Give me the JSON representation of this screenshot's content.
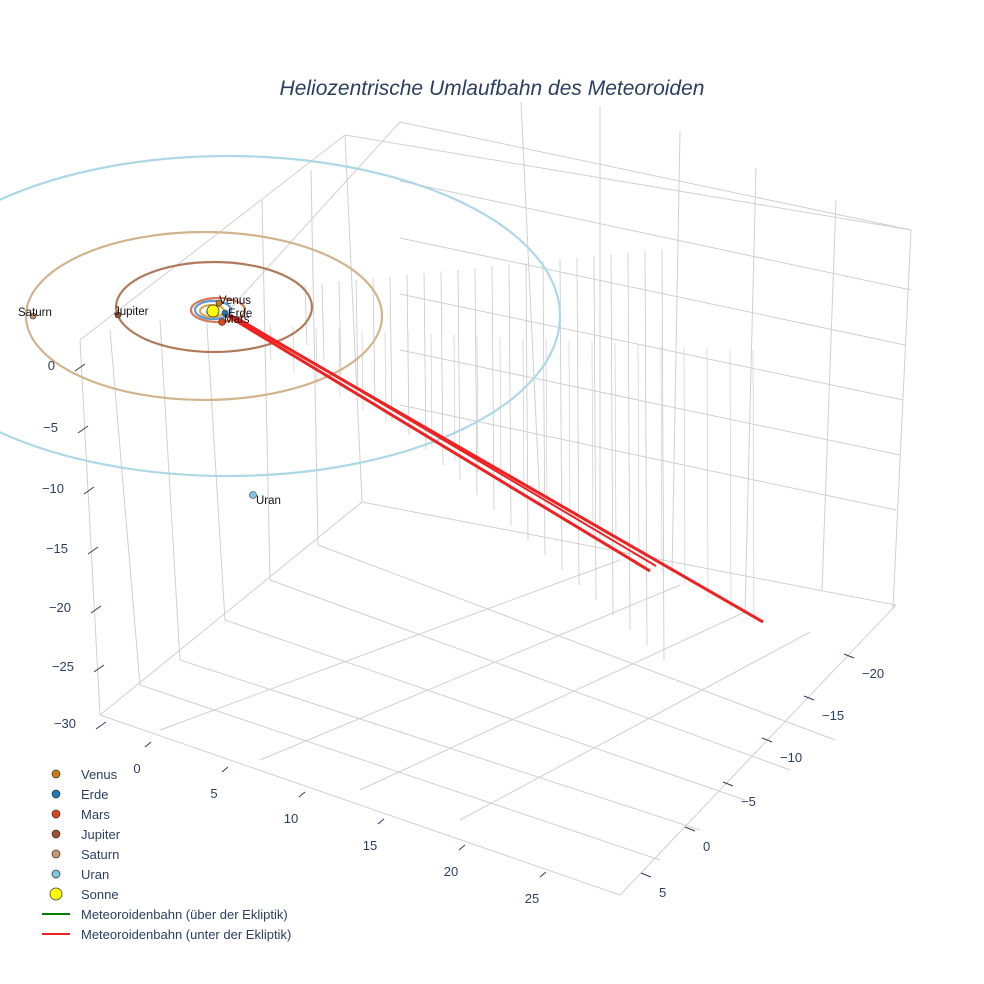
{
  "chart_data": {
    "type": "scatter3d",
    "title": "Heliozentrische Umlaufbahn des Meteoroiden",
    "axes": {
      "x": {
        "ticks": [
          -20,
          -15,
          -10,
          -5,
          0,
          5
        ],
        "labels": [
          "−20",
          "−15",
          "−10",
          "−5",
          "0",
          "5"
        ]
      },
      "y": {
        "ticks": [
          0,
          5,
          10,
          15,
          20,
          25
        ],
        "labels": [
          "0",
          "5",
          "10",
          "15",
          "20",
          "25"
        ]
      },
      "z": {
        "ticks": [
          0,
          -5,
          -10,
          -15,
          -20,
          -25,
          -30
        ],
        "labels": [
          "0",
          "−5",
          "−10",
          "−15",
          "−20",
          "−25",
          "−30"
        ]
      }
    },
    "sun": {
      "name": "Sonne",
      "color": "#ffff00"
    },
    "planets": [
      {
        "name": "Venus",
        "color": "#cc7a1a",
        "orbit_color": "#e0a84a",
        "label": "Venus"
      },
      {
        "name": "Erde",
        "color": "#1f77b4",
        "orbit_color": "#5b9bd5",
        "label": "Erde"
      },
      {
        "name": "Mars",
        "color": "#d9481c",
        "orbit_color": "#d27a5a",
        "label": "Mars"
      },
      {
        "name": "Jupiter",
        "color": "#a0522d",
        "orbit_color": "#b07a5a",
        "label": "Jupiter"
      },
      {
        "name": "Saturn",
        "color": "#c8956c",
        "orbit_color": "#d2b48c",
        "label": "Saturn"
      },
      {
        "name": "Uran",
        "color": "#7ec8e3",
        "orbit_color": "#add8e6",
        "label": "Uran"
      }
    ],
    "meteoroid_paths": [
      {
        "name": "Meteoroidenbahn (über der Ekliptik)",
        "color": "#008000"
      },
      {
        "name": "Meteoroidenbahn (unter der Ekliptik)",
        "color": "#ee2222"
      }
    ],
    "legend": {
      "position": "bottom-left",
      "items": [
        {
          "label": "Venus",
          "color": "#cc7a1a",
          "kind": "marker"
        },
        {
          "label": "Erde",
          "color": "#1f77b4",
          "kind": "marker"
        },
        {
          "label": "Mars",
          "color": "#d9481c",
          "kind": "marker"
        },
        {
          "label": "Jupiter",
          "color": "#a0522d",
          "kind": "marker"
        },
        {
          "label": "Saturn",
          "color": "#c8956c",
          "kind": "marker"
        },
        {
          "label": "Uran",
          "color": "#7ec8e3",
          "kind": "marker"
        },
        {
          "label": "Sonne",
          "color": "#ffff00",
          "kind": "marker-large"
        },
        {
          "label": "Meteoroidenbahn (über der Ekliptik)",
          "color": "#008000",
          "kind": "line"
        },
        {
          "label": "Meteoroidenbahn (unter der Ekliptik)",
          "color": "#ee2222",
          "kind": "line"
        }
      ]
    }
  }
}
